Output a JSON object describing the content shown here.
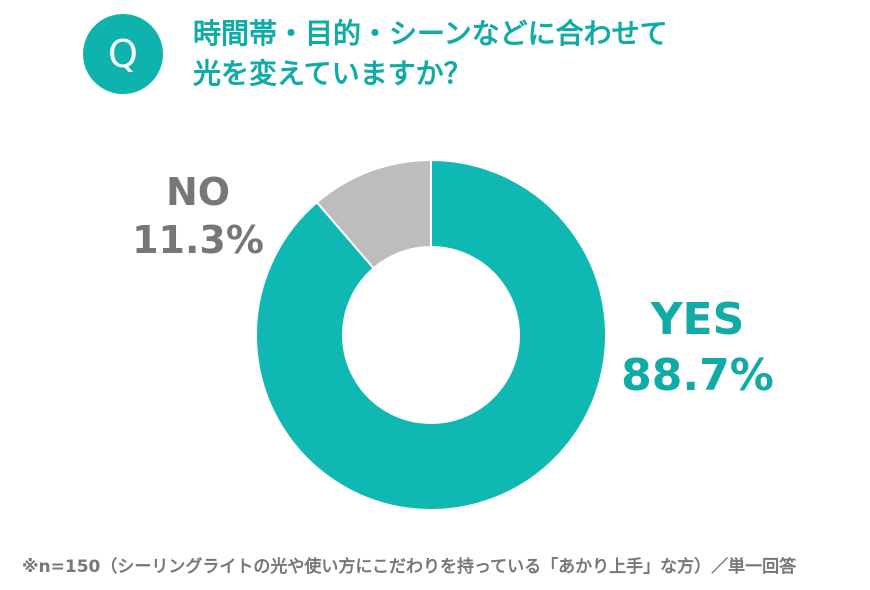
{
  "header": {
    "badge": "Q",
    "question_line1": "時間帯・目的・シーンなどに合わせて",
    "question_line2": "光を変えていますか？"
  },
  "chart_data": {
    "type": "pie",
    "donut": true,
    "categories": [
      "YES",
      "NO"
    ],
    "values": [
      88.7,
      11.3
    ],
    "value_labels": [
      "88.7%",
      "11.3%"
    ],
    "colors": [
      "#0fb8b2",
      "#bdbdbd"
    ],
    "label_colors": [
      "#10aba6",
      "#777777"
    ],
    "start_angle": "12 o'clock",
    "direction": "clockwise"
  },
  "footnote": "※n=150（シーリングライトの光や使い方にこだわりを持っている「あかり上手」な方）／単一回答"
}
